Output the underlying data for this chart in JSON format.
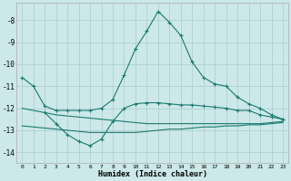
{
  "xlabel": "Humidex (Indice chaleur)",
  "bg_color": "#cce8e8",
  "grid_color": "#aacccc",
  "line_color": "#1a7a6e",
  "x_min": -0.5,
  "x_max": 23.5,
  "y_min": -14.5,
  "y_max": -7.2,
  "yticks": [
    -8,
    -9,
    -10,
    -11,
    -12,
    -13,
    -14
  ],
  "xticks": [
    0,
    1,
    2,
    3,
    4,
    5,
    6,
    7,
    8,
    9,
    10,
    11,
    12,
    13,
    14,
    15,
    16,
    17,
    18,
    19,
    20,
    21,
    22,
    23
  ],
  "line1_x": [
    0,
    1,
    2,
    3,
    4,
    5,
    6,
    7,
    8,
    9,
    10,
    11,
    12,
    13,
    14,
    15,
    16,
    17,
    18,
    19,
    20,
    21,
    22,
    23
  ],
  "line1_y": [
    -10.6,
    -11.0,
    -11.9,
    -12.1,
    -12.1,
    -12.1,
    -12.1,
    -12.0,
    -11.6,
    -10.5,
    -9.3,
    -8.5,
    -7.6,
    -8.1,
    -8.7,
    -9.9,
    -10.6,
    -10.9,
    -11.0,
    -11.5,
    -11.8,
    -12.0,
    -12.3,
    -12.5
  ],
  "line2_x": [
    2,
    3,
    4,
    5,
    6,
    7,
    8,
    9,
    10,
    11,
    12,
    13,
    14,
    15,
    16,
    17,
    18,
    19,
    20,
    21,
    22,
    23
  ],
  "line2_y": [
    -12.2,
    -12.7,
    -13.2,
    -13.5,
    -13.7,
    -13.4,
    -12.6,
    -12.0,
    -11.8,
    -11.75,
    -11.75,
    -11.8,
    -11.85,
    -11.85,
    -11.9,
    -11.95,
    -12.0,
    -12.1,
    -12.1,
    -12.3,
    -12.4,
    -12.5
  ],
  "line3_x": [
    0,
    1,
    2,
    3,
    4,
    5,
    6,
    7,
    8,
    9,
    10,
    11,
    12,
    13,
    14,
    15,
    16,
    17,
    18,
    19,
    20,
    21,
    22,
    23
  ],
  "line3_y": [
    -12.0,
    -12.1,
    -12.2,
    -12.3,
    -12.35,
    -12.4,
    -12.45,
    -12.5,
    -12.55,
    -12.6,
    -12.65,
    -12.7,
    -12.7,
    -12.7,
    -12.7,
    -12.7,
    -12.7,
    -12.7,
    -12.7,
    -12.7,
    -12.7,
    -12.7,
    -12.65,
    -12.6
  ],
  "line4_x": [
    0,
    1,
    2,
    3,
    4,
    5,
    6,
    7,
    8,
    9,
    10,
    11,
    12,
    13,
    14,
    15,
    16,
    17,
    18,
    19,
    20,
    21,
    22,
    23
  ],
  "line4_y": [
    -12.8,
    -12.85,
    -12.9,
    -12.95,
    -13.0,
    -13.05,
    -13.1,
    -13.1,
    -13.1,
    -13.1,
    -13.1,
    -13.05,
    -13.0,
    -12.95,
    -12.95,
    -12.9,
    -12.85,
    -12.85,
    -12.8,
    -12.8,
    -12.75,
    -12.75,
    -12.7,
    -12.65
  ]
}
